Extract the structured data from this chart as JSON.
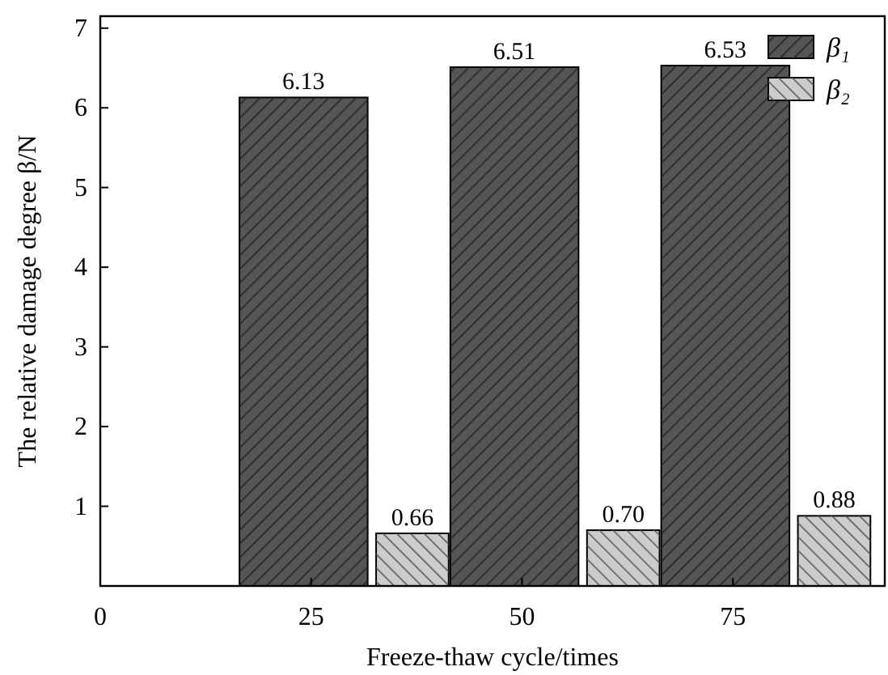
{
  "chart_data": {
    "type": "bar",
    "xlabel": "Freeze-thaw cycle/times",
    "ylabel": "The relative damage degree β/N",
    "x": [
      25,
      50,
      75
    ],
    "xlim": [
      0,
      93
    ],
    "xticks": [
      0,
      25,
      50,
      75
    ],
    "ylim": [
      0,
      7.15
    ],
    "yticks": [
      1,
      2,
      3,
      4,
      5,
      6,
      7
    ],
    "series": [
      {
        "name": "β₁",
        "color": "#555555",
        "values": [
          6.13,
          6.51,
          6.53
        ],
        "value_labels": [
          "6.13",
          "6.51",
          "6.53"
        ]
      },
      {
        "name": "β₂",
        "color": "#cccccc",
        "values": [
          0.66,
          0.7,
          0.88
        ],
        "value_labels": [
          "0.66",
          "0.70",
          "0.88"
        ]
      }
    ],
    "grid": false,
    "legend": "top right"
  }
}
